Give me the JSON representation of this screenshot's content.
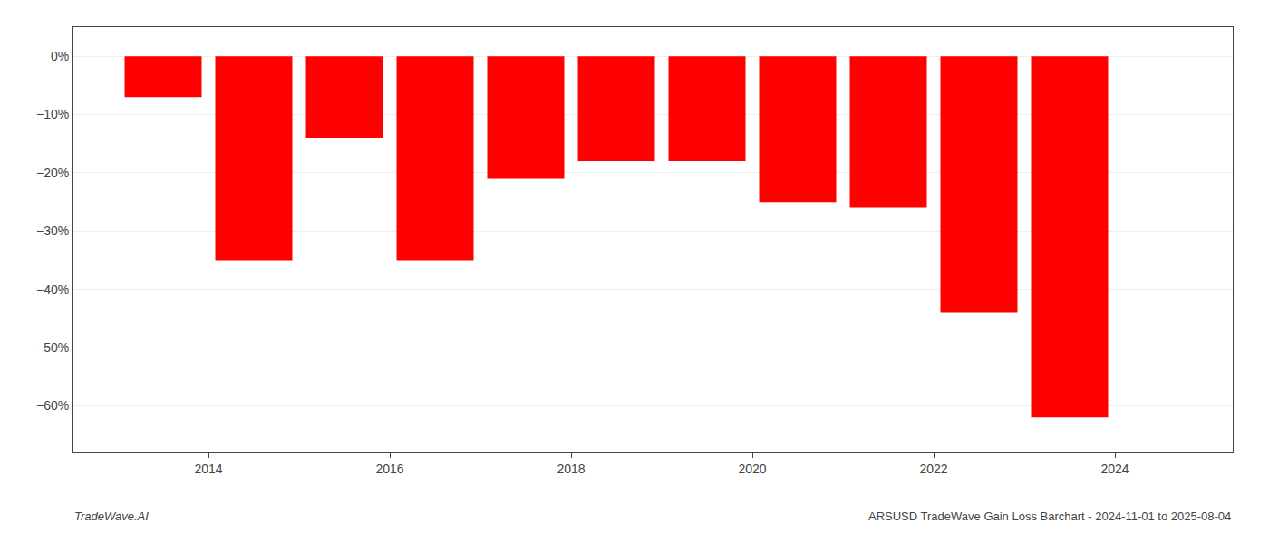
{
  "chart_data": {
    "type": "bar",
    "x": [
      2013.5,
      2014.5,
      2015.5,
      2016.5,
      2017.5,
      2018.5,
      2019.5,
      2020.5,
      2021.5,
      2022.5,
      2023.5
    ],
    "values": [
      -7,
      -35,
      -14,
      -35,
      -21,
      -18,
      -18,
      -25,
      -26,
      -44,
      -62
    ],
    "color": "#ff0000",
    "xlim": [
      2012.5,
      2025.3
    ],
    "xticks": [
      2014,
      2016,
      2018,
      2020,
      2022,
      2024
    ],
    "ylim": [
      -68,
      5
    ],
    "yticks": [
      {
        "value": 0,
        "label": "0%"
      },
      {
        "value": -10,
        "label": "−10%"
      },
      {
        "value": -20,
        "label": "−20%"
      },
      {
        "value": -30,
        "label": "−30%"
      },
      {
        "value": -40,
        "label": "−40%"
      },
      {
        "value": -50,
        "label": "−50%"
      },
      {
        "value": -60,
        "label": "−60%"
      }
    ],
    "grid": "y",
    "annotations": [
      "TradeWave.AI",
      "ARSUSD TradeWave Gain Loss Barchart - 2024-11-01 to 2025-08-04"
    ]
  }
}
